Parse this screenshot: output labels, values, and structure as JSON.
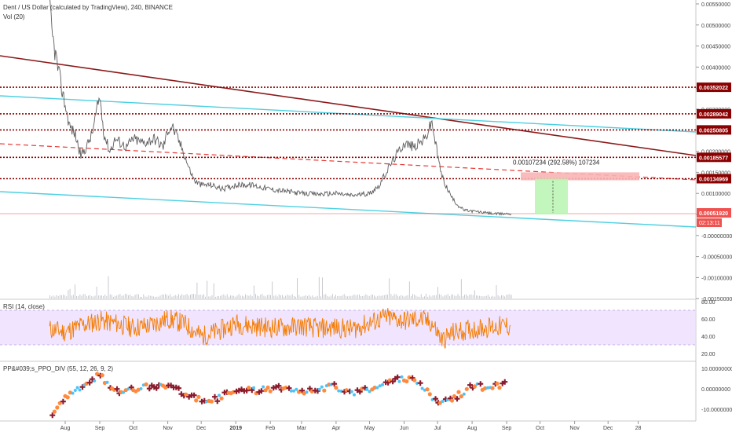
{
  "header": {
    "symbol_line": "Dent / US Dollar (calculated by TradingView), 240, BINANCE",
    "volume_label": "Vol (20)"
  },
  "chart_data": [
    {
      "type": "line",
      "name": "price",
      "title": "Dent / US Dollar (calculated by TradingView), 240, BINANCE",
      "scale": "log",
      "x_axis_labels": [
        "Aug",
        "Sep",
        "Oct",
        "Nov",
        "Dec",
        "2019",
        "Feb",
        "Mar",
        "Apr",
        "May",
        "Jun",
        "Jul",
        "Aug",
        "Sep",
        "Oct",
        "Nov",
        "Dec",
        "28"
      ],
      "y_ticks": [
        "0.00550000",
        "0.00500000",
        "0.00450000",
        "0.00400000",
        "0.00350000",
        "0.00300000",
        "0.00250000",
        "0.00200000",
        "0.00150000",
        "0.00100000",
        "0.00050000",
        "-0.00000000",
        "-0.00050000",
        "-0.00100000",
        "-0.00150000"
      ],
      "series": [
        {
          "x": [
            "Jul 18",
            "Jul 20",
            "Jul 24",
            "Jul 28",
            "Aug 1",
            "Aug 5",
            "Aug 10",
            "Aug 15",
            "Aug 20",
            "Aug 25",
            "Sep 1",
            "Sep 5",
            "Sep 10",
            "Sep 15",
            "Sep 20",
            "Sep 25",
            "Oct 1",
            "Oct 10",
            "Oct 20",
            "Oct 28",
            "Nov 1",
            "Nov 5",
            "Nov 10",
            "Nov 15",
            "Nov 20",
            "Nov 25",
            "Dec 1",
            "Dec 10",
            "Dec 20",
            "Jan 1",
            "Jan 15",
            "Feb 1",
            "Feb 15",
            "Mar 1",
            "Mar 15",
            "Apr 1",
            "Apr 15",
            "Apr 25",
            "May 1",
            "May 10",
            "May 20",
            "Jun 1",
            "Jun 10",
            "Jun 20",
            "Jun 26",
            "Jul 1",
            "Jul 5",
            "Jul 10",
            "Jul 15",
            "Jul 20",
            "Jul 25",
            "Aug 1",
            "Aug 10",
            "Aug 20",
            "Aug 25",
            "Sep 1",
            "Sep 5"
          ],
          "y": [
            0.0055,
            0.0048,
            0.0042,
            0.0036,
            0.0031,
            0.0026,
            0.0024,
            0.0019,
            0.0021,
            0.0024,
            0.0033,
            0.0024,
            0.002,
            0.0023,
            0.0022,
            0.0021,
            0.0023,
            0.0022,
            0.0023,
            0.0021,
            0.0025,
            0.0026,
            0.0023,
            0.002,
            0.0016,
            0.0013,
            0.0012,
            0.0012,
            0.0011,
            0.0012,
            0.0012,
            0.0011,
            0.00105,
            0.001,
            0.00098,
            0.001,
            0.00095,
            0.00098,
            0.001,
            0.0012,
            0.0017,
            0.0022,
            0.0021,
            0.0023,
            0.0027,
            0.0019,
            0.0014,
            0.0011,
            0.00085,
            0.0007,
            0.0006,
            0.00058,
            0.00055,
            0.00052,
            0.00051,
            0.00052,
            0.00051
          ]
        }
      ],
      "horizontal_levels": [
        "0.00352022",
        "0.00289042",
        "0.00250805",
        "0.00185577",
        "0.00134969"
      ],
      "current_price": "0.00051920",
      "countdown": "02:13:11",
      "measure_label": "0.00107234 (292.58%) 107234",
      "colors": {
        "price_line": "#5d5d5d",
        "level_line": "#8b0000",
        "trend_red": "#8b1a1a",
        "trend_cyan": "#4dd0e1",
        "current_price": "#ef5350",
        "target_zone": "#b8f5b0",
        "stop_zone": "#f8b4b4"
      }
    },
    {
      "type": "line",
      "name": "rsi",
      "title": "RSI (14, close)",
      "y_ticks": [
        "80.00",
        "60.00",
        "40.00",
        "20.00"
      ],
      "band": [
        30,
        70
      ],
      "series": [
        {
          "x": [
            "Jul 18",
            "Aug 1",
            "Aug 15",
            "Sep 1",
            "Sep 15",
            "Oct 1",
            "Oct 15",
            "Nov 1",
            "Nov 15",
            "Dec 1",
            "Dec 15",
            "Jan 1",
            "Jan 15",
            "Feb 1",
            "Feb 15",
            "Mar 1",
            "Mar 15",
            "Apr 1",
            "Apr 15",
            "May 1",
            "May 15",
            "Jun 1",
            "Jun 15",
            "Jun 26",
            "Jul 5",
            "Jul 15",
            "Aug 1",
            "Aug 15",
            "Sep 1",
            "Sep 5"
          ],
          "y": [
            48,
            45,
            52,
            58,
            55,
            50,
            52,
            60,
            55,
            40,
            45,
            55,
            52,
            50,
            50,
            52,
            49,
            50,
            48,
            55,
            62,
            58,
            60,
            55,
            35,
            44,
            48,
            50,
            52,
            50
          ]
        }
      ],
      "colors": {
        "line": "#f57c00",
        "band": "#e9d8fd",
        "band_border": "#b39ddb"
      }
    },
    {
      "type": "scatter",
      "name": "ppo",
      "title": "PP&#039;s_PPO_DIV (55, 12, 26, 9, 2)",
      "y_ticks": [
        "10.00000000",
        "0.00000000",
        "-10.00000000"
      ],
      "series": [
        {
          "x": [
            "Jul 20",
            "Aug 1",
            "Aug 10",
            "Aug 20",
            "Sep 1",
            "Sep 10",
            "Sep 20",
            "Oct 1",
            "Oct 15",
            "Nov 1",
            "Nov 15",
            "Dec 1",
            "Dec 15",
            "Jan 1",
            "Jan 15",
            "Feb 1",
            "Feb 15",
            "Mar 1",
            "Mar 15",
            "Apr 1",
            "Apr 15",
            "May 1",
            "May 15",
            "Jun 1",
            "Jun 15",
            "Jul 1",
            "Jul 10",
            "Jul 20",
            "Aug 1",
            "Aug 15",
            "Sep 1"
          ],
          "y": [
            -12,
            -5,
            -1,
            2,
            7,
            1,
            -2,
            0,
            1,
            2,
            -2,
            -6,
            -5,
            0,
            -1,
            0,
            1,
            -1,
            0,
            1,
            -2,
            0,
            3,
            5,
            3,
            -8,
            -6,
            -3,
            1,
            1,
            2
          ]
        }
      ],
      "colors": {
        "up": "#ff8a3d",
        "down": "#8b1a2b",
        "cyan": "#4fc3f7"
      }
    }
  ]
}
